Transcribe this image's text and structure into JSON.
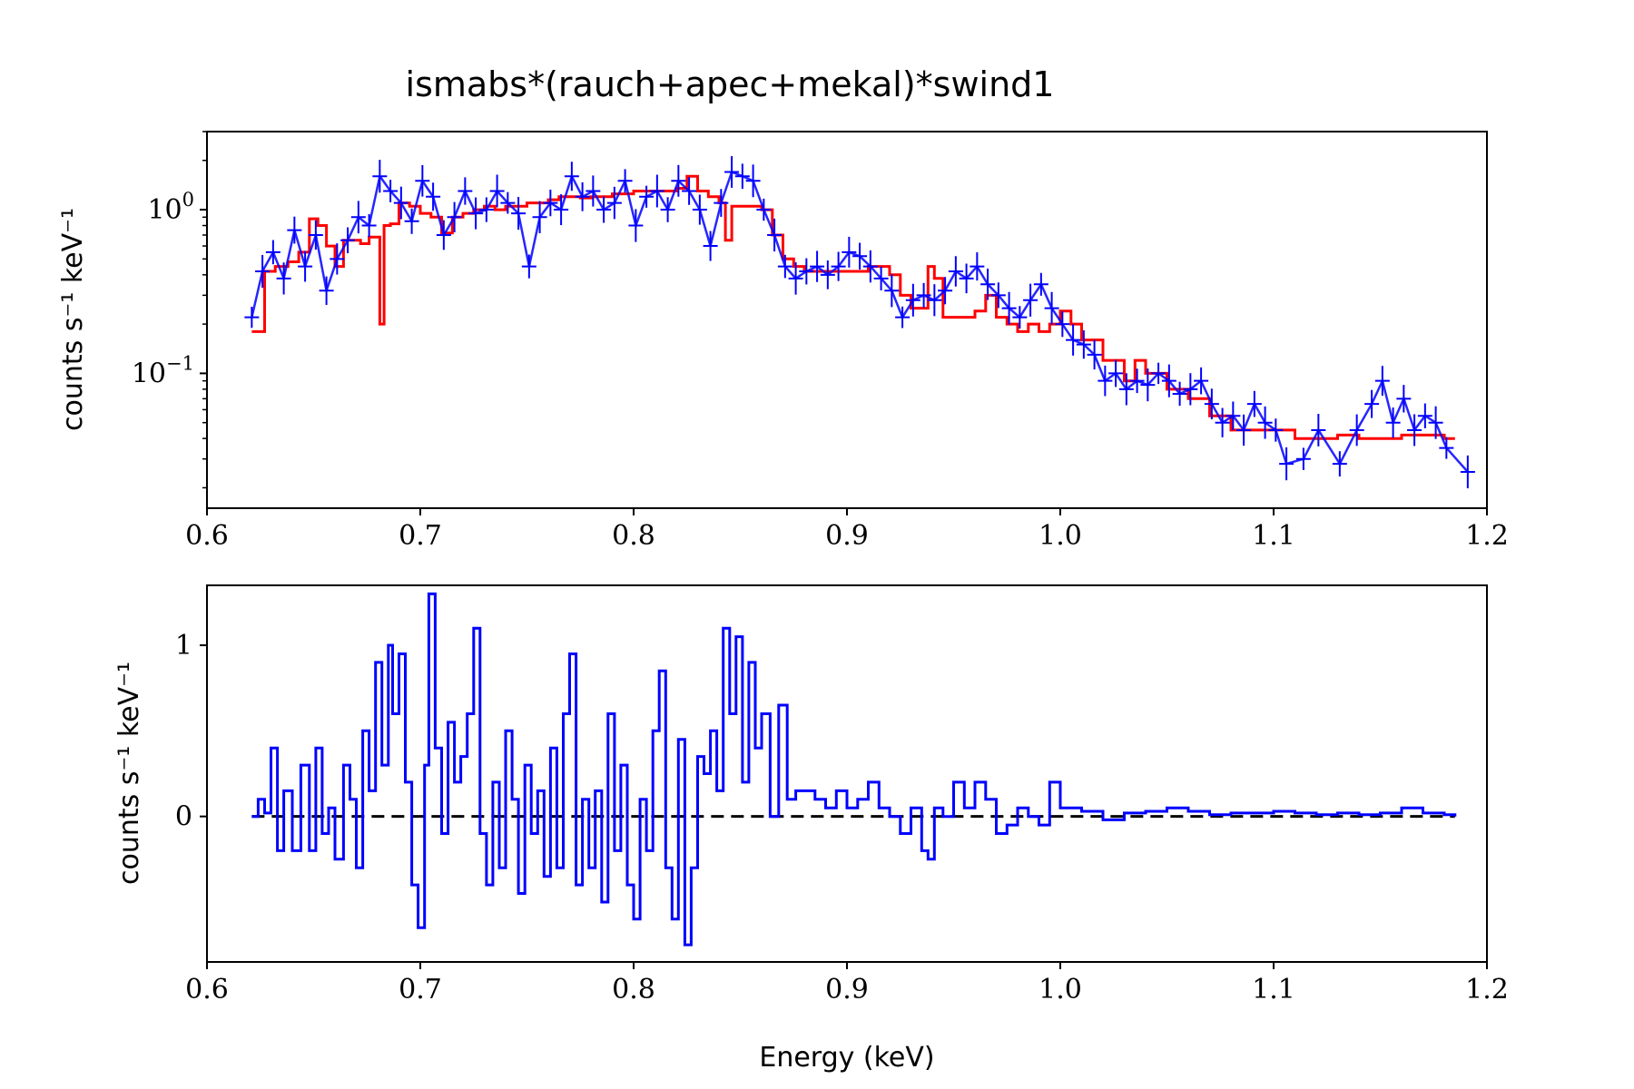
{
  "title": "ismabs*(rauch+apec+mekal)*swind1",
  "colors": {
    "data": "#0000ff",
    "model": "#ff0000",
    "zero_line": "#000000"
  },
  "chart_data": [
    {
      "type": "line",
      "title": "ismabs*(rauch+apec+mekal)*swind1",
      "xlabel": "",
      "ylabel": "counts s⁻¹ keV⁻¹",
      "xlim": [
        0.6,
        1.2
      ],
      "ylim": [
        0.015,
        3.0
      ],
      "yscale": "log",
      "x_ticks": [
        "0.6",
        "0.7",
        "0.8",
        "0.9",
        "1.0",
        "1.1",
        "1.2"
      ],
      "y_ticks": [
        {
          "value": 1,
          "base": "10",
          "exp": "0"
        },
        {
          "value": 0.1,
          "base": "10",
          "exp": "−1"
        }
      ],
      "grid": false,
      "series": [
        {
          "role": "data",
          "color": "#0000ff",
          "x": [
            0.621,
            0.626,
            0.631,
            0.636,
            0.641,
            0.646,
            0.651,
            0.656,
            0.661,
            0.666,
            0.671,
            0.676,
            0.681,
            0.686,
            0.691,
            0.696,
            0.701,
            0.706,
            0.711,
            0.716,
            0.721,
            0.726,
            0.731,
            0.736,
            0.741,
            0.746,
            0.751,
            0.756,
            0.761,
            0.766,
            0.771,
            0.776,
            0.781,
            0.786,
            0.791,
            0.796,
            0.801,
            0.806,
            0.811,
            0.816,
            0.821,
            0.826,
            0.831,
            0.836,
            0.841,
            0.846,
            0.851,
            0.856,
            0.861,
            0.866,
            0.871,
            0.876,
            0.881,
            0.886,
            0.891,
            0.896,
            0.901,
            0.906,
            0.911,
            0.916,
            0.921,
            0.926,
            0.931,
            0.936,
            0.941,
            0.946,
            0.951,
            0.956,
            0.961,
            0.966,
            0.971,
            0.976,
            0.981,
            0.986,
            0.991,
            0.996,
            1.001,
            1.006,
            1.011,
            1.016,
            1.021,
            1.026,
            1.031,
            1.036,
            1.041,
            1.046,
            1.051,
            1.056,
            1.061,
            1.066,
            1.071,
            1.076,
            1.081,
            1.086,
            1.091,
            1.096,
            1.101,
            1.106,
            1.114,
            1.121,
            1.131,
            1.139,
            1.146,
            1.151,
            1.156,
            1.161,
            1.166,
            1.171,
            1.176,
            1.181,
            1.191
          ],
          "y": [
            0.22,
            0.42,
            0.55,
            0.38,
            0.75,
            0.45,
            0.7,
            0.32,
            0.5,
            0.65,
            0.9,
            0.8,
            1.6,
            1.3,
            1.1,
            0.85,
            1.5,
            1.2,
            0.7,
            0.9,
            1.3,
            0.95,
            1.0,
            1.3,
            1.1,
            0.95,
            0.45,
            0.9,
            1.1,
            1.0,
            1.6,
            1.2,
            1.3,
            1.0,
            1.1,
            1.5,
            0.8,
            1.2,
            1.3,
            1.0,
            1.5,
            1.3,
            1.0,
            0.6,
            1.1,
            1.7,
            1.6,
            1.5,
            1.0,
            0.7,
            0.45,
            0.38,
            0.42,
            0.45,
            0.4,
            0.45,
            0.55,
            0.52,
            0.45,
            0.38,
            0.32,
            0.22,
            0.28,
            0.3,
            0.28,
            0.32,
            0.42,
            0.38,
            0.45,
            0.35,
            0.3,
            0.25,
            0.22,
            0.28,
            0.35,
            0.25,
            0.2,
            0.16,
            0.15,
            0.13,
            0.09,
            0.1,
            0.08,
            0.09,
            0.085,
            0.1,
            0.09,
            0.075,
            0.08,
            0.09,
            0.065,
            0.05,
            0.055,
            0.045,
            0.065,
            0.05,
            0.045,
            0.028,
            0.03,
            0.045,
            0.028,
            0.045,
            0.065,
            0.09,
            0.05,
            0.07,
            0.045,
            0.055,
            0.05,
            0.035,
            0.025
          ]
        },
        {
          "role": "model",
          "color": "#ff0000",
          "x": [
            0.621,
            0.627,
            0.632,
            0.638,
            0.643,
            0.648,
            0.652,
            0.656,
            0.66,
            0.664,
            0.668,
            0.672,
            0.676,
            0.681,
            0.683,
            0.686,
            0.69,
            0.695,
            0.7,
            0.705,
            0.71,
            0.715,
            0.72,
            0.725,
            0.73,
            0.735,
            0.74,
            0.745,
            0.75,
            0.755,
            0.76,
            0.765,
            0.77,
            0.775,
            0.78,
            0.79,
            0.8,
            0.81,
            0.82,
            0.825,
            0.83,
            0.835,
            0.84,
            0.843,
            0.846,
            0.85,
            0.86,
            0.865,
            0.87,
            0.875,
            0.88,
            0.89,
            0.9,
            0.91,
            0.92,
            0.925,
            0.93,
            0.935,
            0.938,
            0.941,
            0.945,
            0.95,
            0.955,
            0.96,
            0.965,
            0.97,
            0.975,
            0.98,
            0.985,
            0.99,
            0.995,
            1.0,
            1.005,
            1.01,
            1.02,
            1.03,
            1.035,
            1.04,
            1.05,
            1.06,
            1.07,
            1.08,
            1.09,
            1.1,
            1.11,
            1.12,
            1.13,
            1.14,
            1.15,
            1.16,
            1.17,
            1.18,
            1.185
          ],
          "y": [
            0.18,
            0.42,
            0.45,
            0.48,
            0.55,
            0.88,
            0.8,
            0.6,
            0.45,
            0.65,
            0.65,
            0.62,
            0.68,
            0.2,
            0.8,
            0.82,
            1.1,
            1.05,
            0.95,
            0.9,
            0.72,
            0.9,
            0.95,
            1.0,
            1.05,
            1.0,
            1.05,
            1.05,
            1.1,
            1.1,
            1.15,
            1.2,
            1.2,
            1.18,
            1.2,
            1.25,
            1.3,
            1.3,
            1.35,
            1.6,
            1.3,
            1.2,
            1.1,
            0.65,
            1.05,
            1.05,
            1.0,
            0.7,
            0.5,
            0.45,
            0.42,
            0.42,
            0.42,
            0.45,
            0.4,
            0.3,
            0.25,
            0.25,
            0.45,
            0.38,
            0.22,
            0.22,
            0.22,
            0.24,
            0.3,
            0.22,
            0.2,
            0.18,
            0.2,
            0.18,
            0.2,
            0.24,
            0.2,
            0.16,
            0.12,
            0.09,
            0.12,
            0.1,
            0.08,
            0.07,
            0.055,
            0.045,
            0.045,
            0.045,
            0.04,
            0.04,
            0.042,
            0.04,
            0.04,
            0.042,
            0.042,
            0.04,
            0.04
          ]
        }
      ]
    },
    {
      "type": "line",
      "title": "",
      "xlabel": "Energy (keV)",
      "ylabel": "counts s⁻¹ keV⁻¹",
      "xlim": [
        0.6,
        1.2
      ],
      "ylim": [
        -0.85,
        1.35
      ],
      "x_ticks": [
        "0.6",
        "0.7",
        "0.8",
        "0.9",
        "1.0",
        "1.1",
        "1.2"
      ],
      "y_ticks": [
        {
          "value": 1,
          "label": "1"
        },
        {
          "value": 0,
          "label": "0"
        }
      ],
      "grid": false,
      "reference_line": {
        "y": 0,
        "style": "dashed",
        "color": "#000000",
        "x_range": [
          0.621,
          1.185
        ]
      },
      "series": [
        {
          "role": "residuals",
          "color": "#0000ff",
          "x": [
            0.621,
            0.624,
            0.627,
            0.63,
            0.633,
            0.636,
            0.64,
            0.644,
            0.648,
            0.651,
            0.654,
            0.657,
            0.66,
            0.664,
            0.667,
            0.67,
            0.673,
            0.676,
            0.679,
            0.682,
            0.685,
            0.687,
            0.69,
            0.693,
            0.696,
            0.699,
            0.702,
            0.704,
            0.707,
            0.71,
            0.713,
            0.716,
            0.719,
            0.722,
            0.725,
            0.728,
            0.731,
            0.734,
            0.737,
            0.74,
            0.743,
            0.746,
            0.749,
            0.752,
            0.755,
            0.758,
            0.761,
            0.764,
            0.767,
            0.77,
            0.773,
            0.776,
            0.779,
            0.782,
            0.785,
            0.788,
            0.791,
            0.794,
            0.797,
            0.8,
            0.803,
            0.806,
            0.809,
            0.812,
            0.815,
            0.818,
            0.821,
            0.824,
            0.827,
            0.83,
            0.833,
            0.836,
            0.839,
            0.842,
            0.845,
            0.848,
            0.851,
            0.854,
            0.857,
            0.86,
            0.864,
            0.868,
            0.872,
            0.876,
            0.88,
            0.885,
            0.89,
            0.895,
            0.9,
            0.905,
            0.91,
            0.915,
            0.92,
            0.925,
            0.93,
            0.935,
            0.938,
            0.941,
            0.945,
            0.95,
            0.955,
            0.96,
            0.965,
            0.97,
            0.975,
            0.98,
            0.985,
            0.99,
            0.995,
            1.0,
            1.01,
            1.02,
            1.03,
            1.04,
            1.05,
            1.06,
            1.07,
            1.08,
            1.09,
            1.1,
            1.11,
            1.12,
            1.13,
            1.14,
            1.15,
            1.16,
            1.17,
            1.18,
            1.185
          ],
          "y": [
            0.0,
            0.1,
            0.02,
            0.4,
            -0.2,
            0.15,
            -0.2,
            0.3,
            -0.2,
            0.4,
            -0.1,
            0.05,
            -0.25,
            0.3,
            0.1,
            -0.3,
            0.5,
            0.15,
            0.9,
            0.3,
            1.0,
            0.6,
            0.95,
            0.2,
            -0.4,
            -0.65,
            0.3,
            1.3,
            0.4,
            -0.1,
            0.55,
            0.2,
            0.35,
            0.6,
            1.1,
            -0.1,
            -0.4,
            0.2,
            -0.3,
            0.5,
            0.1,
            -0.45,
            0.3,
            -0.1,
            0.15,
            -0.35,
            0.4,
            -0.3,
            0.6,
            0.95,
            -0.4,
            0.1,
            -0.3,
            0.15,
            -0.5,
            0.6,
            -0.2,
            0.3,
            -0.4,
            -0.6,
            0.1,
            -0.2,
            0.5,
            0.85,
            -0.3,
            -0.6,
            0.45,
            -0.75,
            -0.3,
            0.35,
            0.25,
            0.5,
            0.15,
            1.1,
            0.6,
            1.05,
            0.2,
            0.9,
            0.4,
            0.6,
            0.0,
            0.65,
            0.1,
            0.15,
            0.15,
            0.1,
            0.05,
            0.15,
            0.05,
            0.1,
            0.2,
            0.05,
            0.0,
            -0.1,
            0.05,
            -0.2,
            -0.25,
            0.05,
            0.0,
            0.2,
            0.05,
            0.2,
            0.1,
            -0.1,
            -0.05,
            0.05,
            0.0,
            -0.05,
            0.2,
            0.05,
            0.03,
            -0.02,
            0.02,
            0.03,
            0.05,
            0.03,
            0.01,
            0.02,
            0.02,
            0.03,
            0.02,
            0.01,
            0.02,
            0.01,
            0.02,
            0.05,
            0.02,
            0.01,
            0.0
          ]
        }
      ]
    }
  ]
}
